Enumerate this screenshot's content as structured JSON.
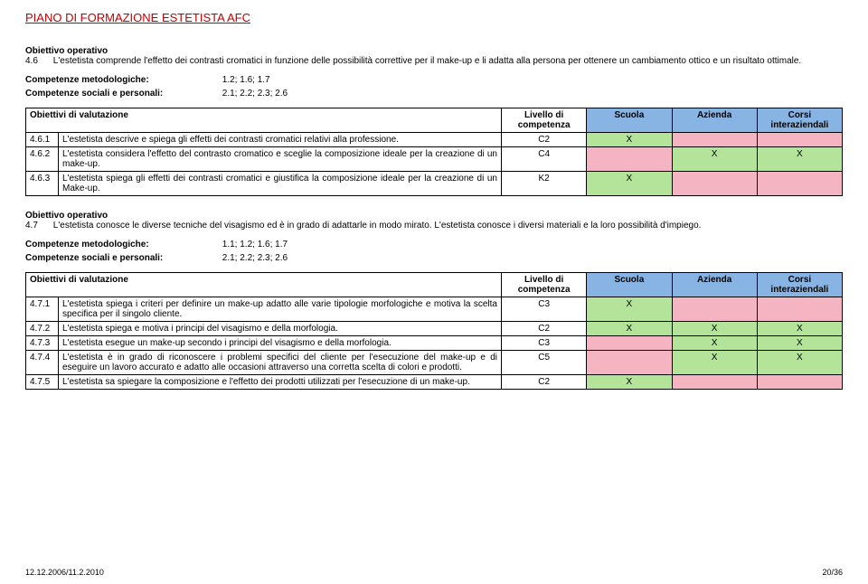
{
  "header": {
    "title": "PIANO DI FORMAZIONE ESTETISTA AFC"
  },
  "colors": {
    "header_red": "#c00000",
    "header_blue": "#88b4e4",
    "cell_green": "#b4e49a",
    "cell_pink": "#f4b4c2",
    "border": "#000000"
  },
  "section1": {
    "label": "Obiettivo operativo",
    "num": "4.6",
    "text": "L'estetista comprende l'effetto dei contrasti cromatici in funzione delle possibilità correttive per il make-up e li adatta alla persona per ottenere un cambiamento ottico e un risultato ottimale.",
    "comp_met_label": "Competenze metodologiche:",
    "comp_met_val": "1.2; 1.6; 1.7",
    "comp_soc_label": "Competenze sociali e personali:",
    "comp_soc_val": "2.1; 2.2; 2.3; 2.6"
  },
  "table_headers": {
    "obj": "Obiettivi di valutazione",
    "level": "Livello di competenza",
    "school": "Scuola",
    "company": "Azienda",
    "inter": "Corsi interaziendali"
  },
  "table1": {
    "rows": [
      {
        "num": "4.6.1",
        "desc": "L'estetista descrive e spiega gli effetti dei contrasti cromatici relativi alla professione.",
        "level": "C2",
        "school": "X",
        "company": "",
        "inter": ""
      },
      {
        "num": "4.6.2",
        "desc": "L'estetista considera l'effetto del contrasto cromatico e sceglie la composizione ideale per la creazione di un make-up.",
        "level": "C4",
        "school": "",
        "company": "X",
        "inter": "X"
      },
      {
        "num": "4.6.3",
        "desc": "L'estetista spiega gli effetti dei contrasti cromatici e giustifica la composizione ideale per la creazione di un Make-up.",
        "level": "K2",
        "school": "X",
        "company": "",
        "inter": ""
      }
    ]
  },
  "section2": {
    "label": "Obiettivo operativo",
    "num": "4.7",
    "text": "L'estetista conosce le diverse tecniche del visagismo ed è in grado di adattarle in modo mirato. L'estetista conosce i diversi materiali e la loro possibilità d'impiego.",
    "comp_met_label": "Competenze metodologiche:",
    "comp_met_val": "1.1; 1.2; 1.6; 1.7",
    "comp_soc_label": "Competenze sociali e personali:",
    "comp_soc_val": "2.1; 2.2; 2.3; 2.6"
  },
  "table2": {
    "rows": [
      {
        "num": "4.7.1",
        "desc": "L'estetista spiega i criteri per definire un make-up adatto alle varie tipologie morfologiche e motiva la scelta specifica per il singolo cliente.",
        "level": "C3",
        "school": "X",
        "company": "",
        "inter": ""
      },
      {
        "num": "4.7.2",
        "desc": "L'estetista spiega e motiva i principi del visagismo e della morfologia.",
        "level": "C2",
        "school": "X",
        "company": "X",
        "inter": "X"
      },
      {
        "num": "4.7.3",
        "desc": "L'estetista esegue un make-up secondo i principi del visagismo e della morfologia.",
        "level": "C3",
        "school": "",
        "company": "X",
        "inter": "X"
      },
      {
        "num": "4.7.4",
        "desc": "L'estetista è in grado di riconoscere i problemi specifici del cliente per l'esecuzione del make-up e di eseguire un lavoro accurato e adatto alle occasioni attraverso una corretta scelta di colori e prodotti.",
        "level": "C5",
        "school": "",
        "company": "X",
        "inter": "X"
      },
      {
        "num": "4.7.5",
        "desc": "L'estetista sa spiegare la composizione e l'effetto dei prodotti utilizzati per l'esecuzione di un make-up.",
        "level": "C2",
        "school": "X",
        "company": "",
        "inter": ""
      }
    ]
  },
  "footer": {
    "date": "12.12.2006/11.2.2010",
    "page": "20/36"
  }
}
